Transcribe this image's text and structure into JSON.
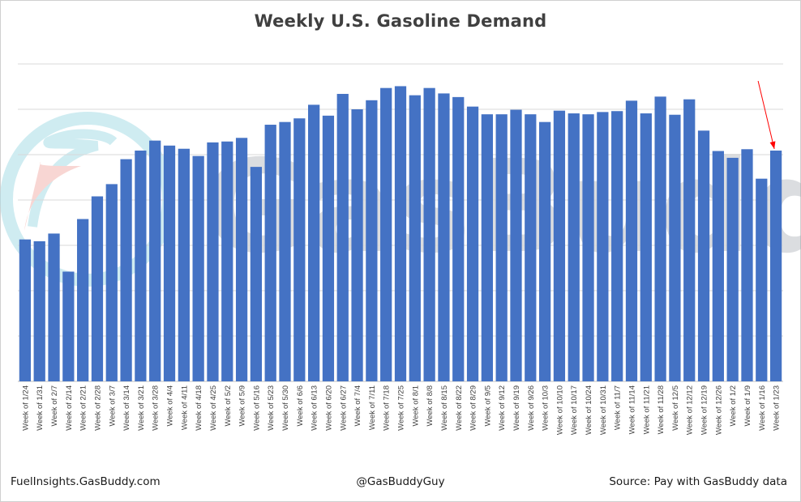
{
  "chart_data": {
    "type": "bar",
    "title": "Weekly U.S. Gasoline Demand",
    "xlabel": "",
    "ylabel": "",
    "ylim": [
      0,
      7
    ],
    "grid": true,
    "categories": [
      "Week of 1/24",
      "Week of 1/31",
      "Week of 2/7",
      "Week of 2/14",
      "Week of 2/21",
      "Week of 2/28",
      "Week of 3/7",
      "Week of 3/14",
      "Week of 3/21",
      "Week of 3/28",
      "Week of 4/4",
      "Week of 4/11",
      "Week of 4/18",
      "Week of 4/25",
      "Week of 5/2",
      "Week of 5/9",
      "Week of 5/16",
      "Week of 5/23",
      "Week of 5/30",
      "Week of 6/6",
      "Week of 6/13",
      "Week of 6/20",
      "Week of 6/27",
      "Week of 7/4",
      "Week of 7/11",
      "Week of 7/18",
      "Week of 7/25",
      "Week of 8/1",
      "Week of 8/8",
      "Week of 8/15",
      "Week of 8/22",
      "Week of 8/29",
      "Week of 9/5",
      "Week of 9/12",
      "Week of 9/19",
      "Week of 9/26",
      "Week of 10/3",
      "Week of 10/10",
      "Week of 10/17",
      "Week of 10/24",
      "Week of 10/31",
      "Week of 11/7",
      "Week of 11/14",
      "Week of 11/21",
      "Week of 11/28",
      "Week of 12/5",
      "Week of 12/12",
      "Week of 12/19",
      "Week of 12/26",
      "Week of 1/2",
      "Week of 1/9",
      "Week of 1/16",
      "Week of 1/23"
    ],
    "values": [
      3.13,
      3.09,
      3.26,
      2.42,
      3.58,
      4.08,
      4.35,
      4.9,
      5.09,
      5.31,
      5.2,
      5.13,
      4.97,
      5.27,
      5.29,
      5.37,
      4.73,
      5.66,
      5.72,
      5.8,
      6.1,
      5.86,
      6.34,
      6.0,
      6.2,
      6.47,
      6.51,
      6.31,
      6.47,
      6.35,
      6.27,
      6.06,
      5.89,
      5.89,
      5.99,
      5.89,
      5.72,
      5.97,
      5.91,
      5.89,
      5.94,
      5.96,
      6.19,
      5.91,
      6.28,
      5.88,
      6.22,
      5.53,
      5.08,
      4.93,
      5.12,
      4.47,
      5.09
    ],
    "color": "#4472c4",
    "grid_color": "#d9d9d9",
    "annotation": {
      "type": "arrow",
      "target": "Week of 1/23",
      "color": "#ff0000"
    }
  },
  "watermark": {
    "text": "GasBuddy"
  },
  "footer": {
    "left": "FuelInsights.GasBuddy.com",
    "center": "@GasBuddyGuy",
    "right": "Source: Pay with GasBuddy data"
  }
}
